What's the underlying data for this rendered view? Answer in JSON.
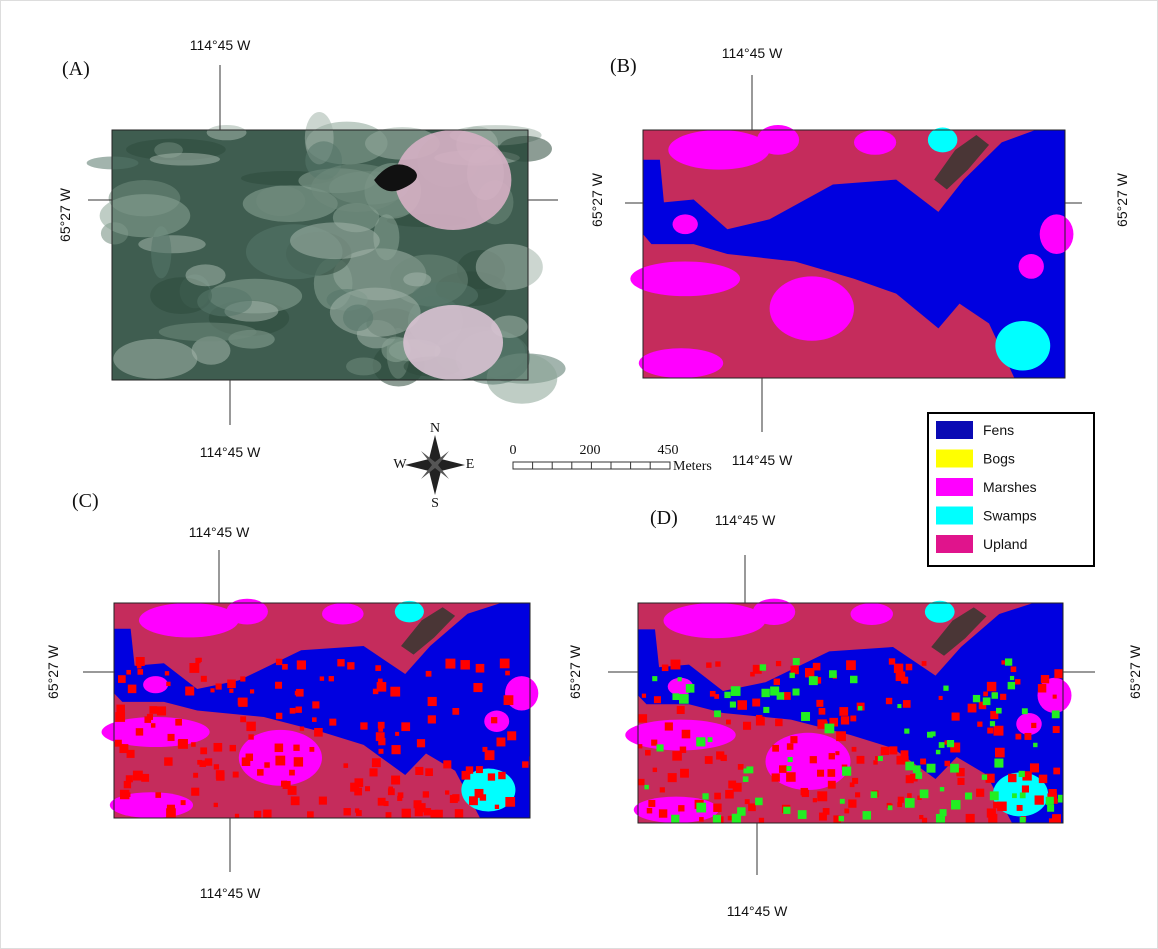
{
  "panels": [
    {
      "label": "(A)",
      "top": "114°45 W",
      "bottom": "114°45 W",
      "left": "65°27 W"
    },
    {
      "label": "(B)",
      "top": "114°45 W",
      "bottom": "114°45 W",
      "left": "65°27 W",
      "right": "65°27 W"
    },
    {
      "label": "(C)",
      "top": "114°45 W",
      "bottom": "114°45 W",
      "left": "65°27 W"
    },
    {
      "label": "(D)",
      "top": "114°45 W",
      "bottom": "114°45 W",
      "left": "65°27 W",
      "right": "65°27 W"
    }
  ],
  "legend": [
    {
      "name": "Fens",
      "color": "#0a0ab4"
    },
    {
      "name": "Bogs",
      "color": "#ffff00"
    },
    {
      "name": "Marshes",
      "color": "#ff00ff"
    },
    {
      "name": "Swamps",
      "color": "#00ffff"
    },
    {
      "name": "Upland",
      "color": "#e0148c"
    }
  ],
  "scale_bar": {
    "ticks": [
      "0",
      "200",
      "450"
    ],
    "unit": "Meters"
  },
  "compass": {
    "n": "N",
    "s": "S",
    "e": "E",
    "w": "W"
  }
}
